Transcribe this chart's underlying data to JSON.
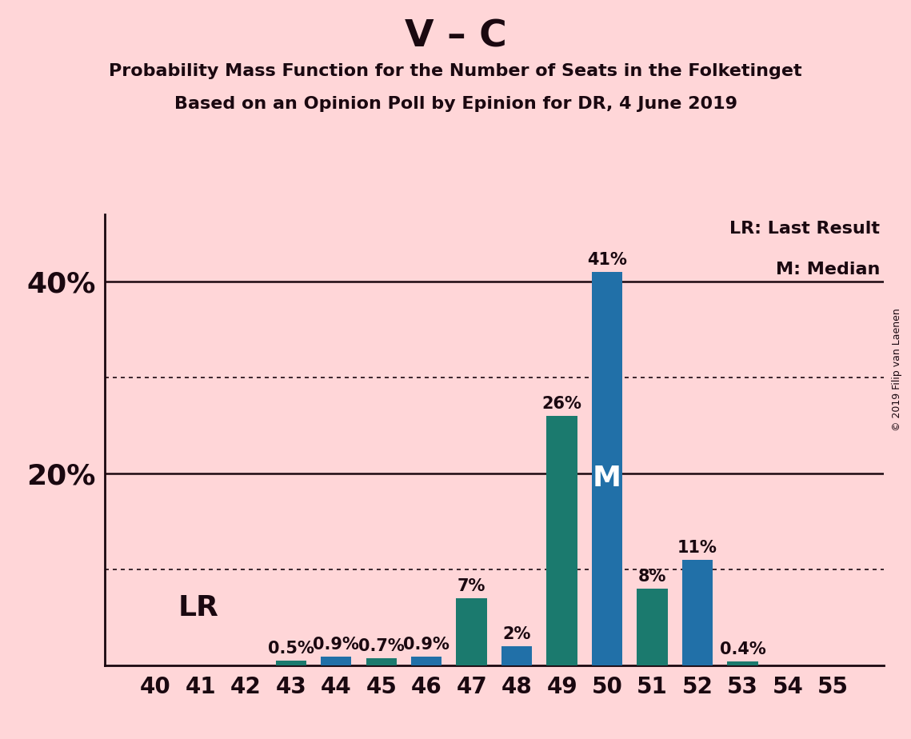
{
  "title": "V – C",
  "subtitle1": "Probability Mass Function for the Number of Seats in the Folketinget",
  "subtitle2": "Based on an Opinion Poll by Epinion for DR, 4 June 2019",
  "copyright": "© 2019 Filip van Laenen",
  "categories": [
    40,
    41,
    42,
    43,
    44,
    45,
    46,
    47,
    48,
    49,
    50,
    51,
    52,
    53,
    54,
    55
  ],
  "values": [
    0.0,
    0.0,
    0.0,
    0.5,
    0.9,
    0.7,
    0.9,
    7.0,
    2.0,
    26.0,
    41.0,
    8.0,
    11.0,
    0.4,
    0.0,
    0.0
  ],
  "bar_colors": [
    "#1b7a6e",
    "#1b7a6e",
    "#1b7a6e",
    "#1b7a6e",
    "#2170a8",
    "#1b7a6e",
    "#2170a8",
    "#1b7a6e",
    "#2170a8",
    "#1b7a6e",
    "#2170a8",
    "#1b7a6e",
    "#2170a8",
    "#1b7a6e",
    "#1b7a6e",
    "#1b7a6e"
  ],
  "background_color": "#ffd6d8",
  "text_color": "#1a0810",
  "ytick_labels": [
    "20%",
    "40%"
  ],
  "ytick_positions": [
    20,
    40
  ],
  "dotted_lines": [
    10,
    30
  ],
  "solid_lines": [
    20,
    40
  ],
  "ylim": [
    0,
    47
  ],
  "median_bar": 50,
  "title_fontsize": 34,
  "subtitle_fontsize": 16,
  "tick_fontsize": 20,
  "ytick_fontsize": 26,
  "bar_label_fontsize": 15,
  "lr_label_fontsize": 26,
  "m_label_fontsize": 26,
  "legend_fontsize": 16,
  "copyright_fontsize": 9
}
